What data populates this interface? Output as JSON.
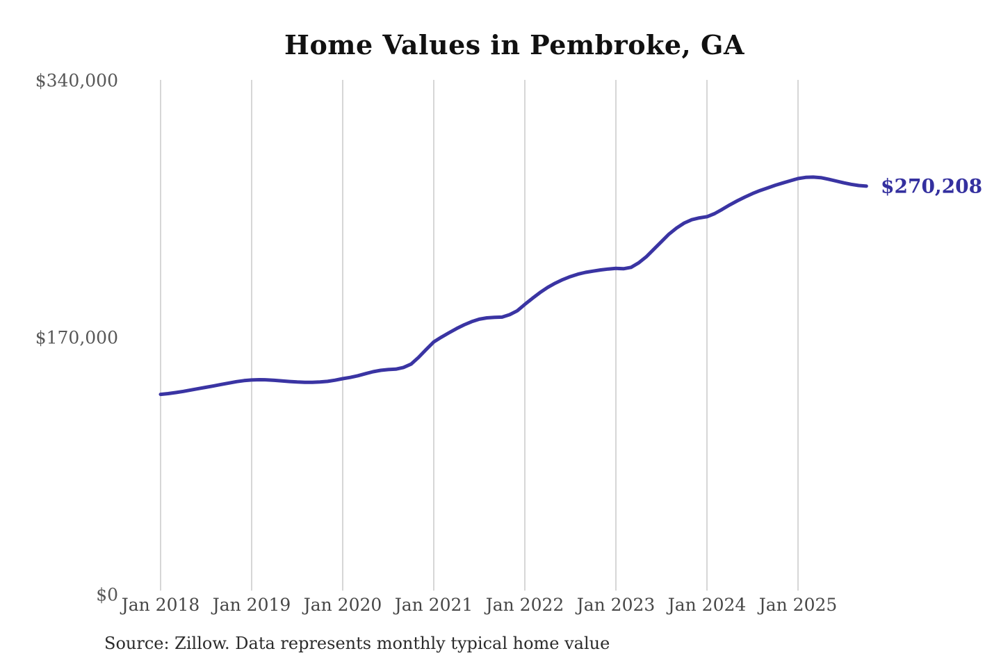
{
  "chart": {
    "title": "Home Values in Pembroke, GA",
    "end_label": "$270,208",
    "source_note": "Source: Zillow. Data represents monthly typical home value",
    "line_color": "#3a34a3",
    "grid_color": "#c8c8c8",
    "y_ticks": [
      {
        "label": "$340,000",
        "value": 340000
      },
      {
        "label": "$170,000",
        "value": 170000
      },
      {
        "label": "$0",
        "value": 0
      }
    ],
    "x_ticks": [
      "Jan 2018",
      "Jan 2019",
      "Jan 2020",
      "Jan 2021",
      "Jan 2022",
      "Jan 2023",
      "Jan 2024",
      "Jan 2025"
    ]
  },
  "chart_data": {
    "type": "line",
    "title": "Home Values in Pembroke, GA",
    "series_name": "Typical home value ($)",
    "xlabel": "",
    "ylabel": "",
    "ylim": [
      0,
      340000
    ],
    "y_tick_values": [
      0,
      170000,
      340000
    ],
    "grid": "vertical-only",
    "legend": "none",
    "annotation": {
      "text": "$270,208",
      "value": 270208,
      "position": "end-of-line"
    },
    "x": [
      "2018-01",
      "2018-02",
      "2018-03",
      "2018-04",
      "2018-05",
      "2018-06",
      "2018-07",
      "2018-08",
      "2018-09",
      "2018-10",
      "2018-11",
      "2018-12",
      "2019-01",
      "2019-02",
      "2019-03",
      "2019-04",
      "2019-05",
      "2019-06",
      "2019-07",
      "2019-08",
      "2019-09",
      "2019-10",
      "2019-11",
      "2019-12",
      "2020-01",
      "2020-02",
      "2020-03",
      "2020-04",
      "2020-05",
      "2020-06",
      "2020-07",
      "2020-08",
      "2020-09",
      "2020-10",
      "2020-11",
      "2020-12",
      "2021-01",
      "2021-02",
      "2021-03",
      "2021-04",
      "2021-05",
      "2021-06",
      "2021-07",
      "2021-08",
      "2021-09",
      "2021-10",
      "2021-11",
      "2021-12",
      "2022-01",
      "2022-02",
      "2022-03",
      "2022-04",
      "2022-05",
      "2022-06",
      "2022-07",
      "2022-08",
      "2022-09",
      "2022-10",
      "2022-11",
      "2022-12",
      "2023-01",
      "2023-02",
      "2023-03",
      "2023-04",
      "2023-05",
      "2023-06",
      "2023-07",
      "2023-08",
      "2023-09",
      "2023-10",
      "2023-11",
      "2023-12",
      "2024-01",
      "2024-02",
      "2024-03",
      "2024-04",
      "2024-05",
      "2024-06",
      "2024-07",
      "2024-08",
      "2024-09",
      "2024-10",
      "2024-11",
      "2024-12",
      "2025-01",
      "2025-02",
      "2025-03",
      "2025-04",
      "2025-05",
      "2025-06",
      "2025-07",
      "2025-08",
      "2025-09",
      "2025-10"
    ],
    "values": [
      132500,
      133000,
      133700,
      134500,
      135400,
      136300,
      137200,
      138100,
      139100,
      140000,
      140900,
      141600,
      142000,
      142200,
      142100,
      141800,
      141400,
      141000,
      140700,
      140500,
      140500,
      140700,
      141100,
      141900,
      142900,
      143700,
      144800,
      146200,
      147500,
      148400,
      148900,
      149200,
      150300,
      152500,
      157000,
      162200,
      167200,
      170300,
      173200,
      176000,
      178500,
      180600,
      182200,
      183100,
      183400,
      183600,
      185200,
      187800,
      192000,
      196000,
      199800,
      203200,
      206000,
      208400,
      210400,
      212000,
      213200,
      214000,
      214800,
      215400,
      215800,
      215600,
      216500,
      219500,
      223500,
      228500,
      233500,
      238500,
      242500,
      245800,
      248000,
      249200,
      250000,
      252000,
      254800,
      257800,
      260500,
      263000,
      265300,
      267300,
      269000,
      270800,
      272300,
      273800,
      275200,
      276000,
      276200,
      275800,
      274800,
      273600,
      272400,
      271400,
      270600,
      270208
    ]
  }
}
